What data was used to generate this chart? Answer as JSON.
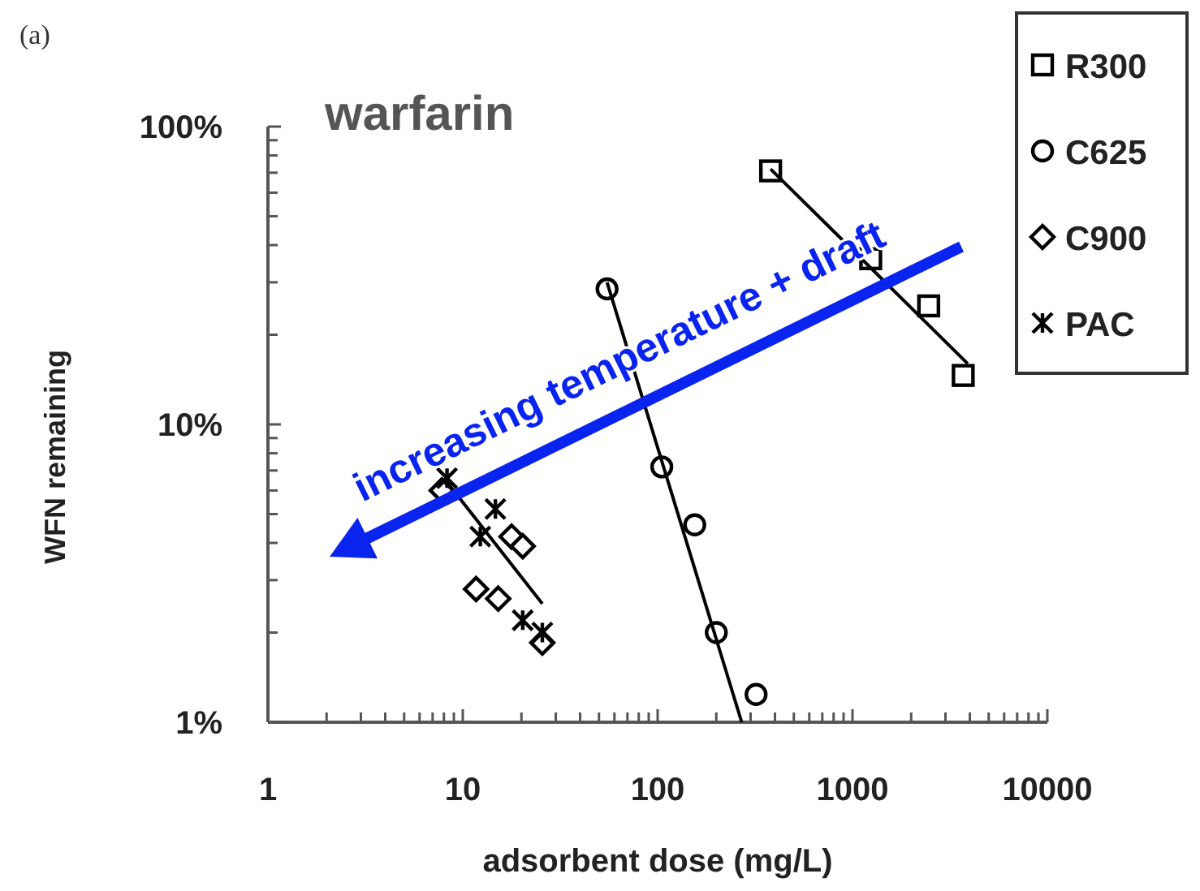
{
  "chart_data": {
    "type": "scatter",
    "title": "warfarin",
    "xlabel": "adsorbent dose (mg/L)",
    "ylabel": "WFN remaining",
    "log": "xy",
    "xlim": [
      1,
      10000
    ],
    "ylim": [
      1,
      100
    ],
    "xticks": [
      1,
      {
        "value": 2,
        "label": null
      },
      {
        "value": 3,
        "label": null
      },
      {
        "value": 4,
        "label": null
      },
      {
        "value": 5,
        "label": null
      },
      {
        "value": 6,
        "label": null
      },
      {
        "value": 7,
        "label": null
      },
      {
        "value": 8,
        "label": null
      },
      {
        "value": 9,
        "label": null
      },
      10,
      {
        "value": 20,
        "label": null
      },
      {
        "value": 30,
        "label": null
      },
      {
        "value": 40,
        "label": null
      },
      {
        "value": 50,
        "label": null
      },
      {
        "value": 60,
        "label": null
      },
      {
        "value": 70,
        "label": null
      },
      {
        "value": 80,
        "label": null
      },
      {
        "value": 90,
        "label": null
      },
      100,
      {
        "value": 200,
        "label": null
      },
      {
        "value": 300,
        "label": null
      },
      {
        "value": 400,
        "label": null
      },
      {
        "value": 500,
        "label": null
      },
      {
        "value": 600,
        "label": null
      },
      {
        "value": 700,
        "label": null
      },
      {
        "value": 800,
        "label": null
      },
      {
        "value": 900,
        "label": null
      },
      1000,
      {
        "value": 2000,
        "label": null
      },
      {
        "value": 3000,
        "label": null
      },
      {
        "value": 4000,
        "label": null
      },
      {
        "value": 5000,
        "label": null
      },
      {
        "value": 6000,
        "label": null
      },
      {
        "value": 7000,
        "label": null
      },
      {
        "value": 8000,
        "label": null
      },
      {
        "value": 9000,
        "label": null
      },
      10000
    ],
    "yticks": [
      {
        "value": 1,
        "label": "1%"
      },
      {
        "value": 2,
        "label": null
      },
      {
        "value": 3,
        "label": null
      },
      {
        "value": 4,
        "label": null
      },
      {
        "value": 5,
        "label": null
      },
      {
        "value": 6,
        "label": null
      },
      {
        "value": 7,
        "label": null
      },
      {
        "value": 8,
        "label": null
      },
      {
        "value": 9,
        "label": null
      },
      {
        "value": 10,
        "label": "10%"
      },
      {
        "value": 20,
        "label": null
      },
      {
        "value": 30,
        "label": null
      },
      {
        "value": 40,
        "label": null
      },
      {
        "value": 50,
        "label": null
      },
      {
        "value": 60,
        "label": null
      },
      {
        "value": 70,
        "label": null
      },
      {
        "value": 80,
        "label": null
      },
      {
        "value": 90,
        "label": null
      },
      {
        "value": 100,
        "label": "100%"
      }
    ],
    "grid": false,
    "legend": "top right",
    "annotations": [
      "(a)",
      "increasing temperature + draft"
    ],
    "series": [
      {
        "name": "R300",
        "color": "#000000",
        "marker": "square",
        "x": [
          380,
          1240,
          2460,
          3700
        ],
        "values": [
          71,
          36,
          25,
          14.6
        ]
      },
      {
        "name": "C625",
        "color": "#000000",
        "marker": "circle",
        "x": [
          55,
          105,
          155,
          200,
          320
        ],
        "values": [
          28.5,
          7.2,
          4.6,
          2.0,
          1.24
        ]
      },
      {
        "name": "C900",
        "color": "#000000",
        "marker": "diamond",
        "x": [
          7.8,
          11.7,
          15.2,
          17.8,
          20.3,
          25.6
        ],
        "values": [
          6.0,
          2.8,
          2.6,
          4.2,
          3.9,
          1.85
        ]
      },
      {
        "name": "PAC",
        "color": "#000000",
        "marker": "cross",
        "x": [
          8.3,
          12.3,
          14.7,
          20.3,
          25.6
        ],
        "values": [
          6.6,
          4.2,
          5.2,
          2.2,
          2.0
        ]
      },
      {
        "type": "line",
        "color": "#000000",
        "marker": "none",
        "x": [
          380,
          3900
        ],
        "values": [
          72,
          16
        ]
      },
      {
        "type": "line",
        "color": "#000000",
        "marker": "none",
        "x": [
          55,
          270
        ],
        "values": [
          30,
          1
        ]
      },
      {
        "type": "line",
        "color": "#000000",
        "marker": "none",
        "x": [
          8,
          25.6
        ],
        "values": [
          6.6,
          2.5
        ]
      }
    ]
  }
}
